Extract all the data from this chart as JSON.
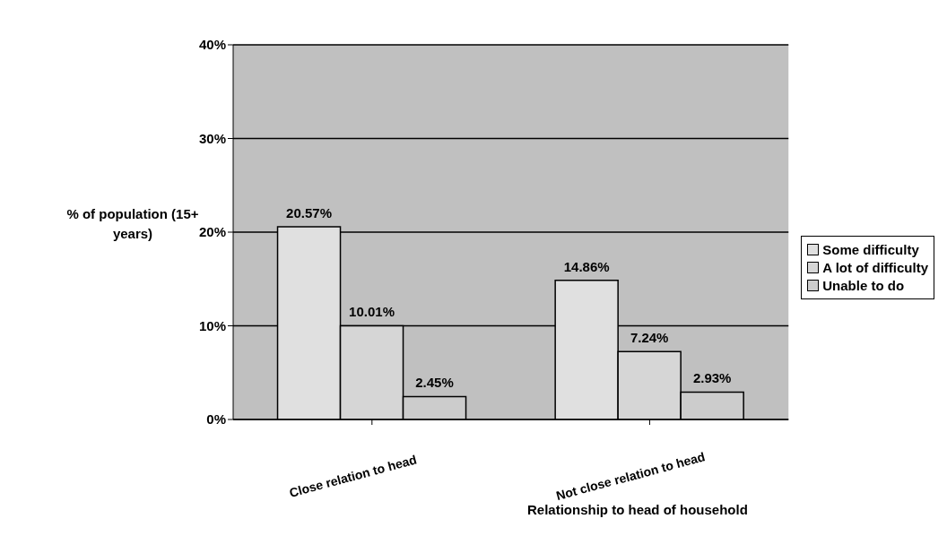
{
  "chart_data": {
    "type": "bar",
    "xlabel": "Relationship to head of household",
    "ylabel": "% of population (15+ years)",
    "categories": [
      "Close relation to head",
      "Not close relation to head"
    ],
    "series": [
      {
        "name": "Some difficulty",
        "color": "#e0e0e0",
        "values": [
          20.57,
          14.86
        ],
        "value_labels": [
          "20.57%",
          "14.86%"
        ]
      },
      {
        "name": "A lot of difficulty",
        "color": "#d6d6d6",
        "values": [
          10.01,
          7.24
        ],
        "value_labels": [
          "10.01%",
          "7.24%"
        ]
      },
      {
        "name": "Unable to do",
        "color": "#cccccc",
        "values": [
          2.45,
          2.93
        ],
        "value_labels": [
          "2.45%",
          "2.93%"
        ]
      }
    ],
    "ylim": [
      0,
      40
    ],
    "yticks": [
      {
        "value": 0,
        "label": "0%"
      },
      {
        "value": 10,
        "label": "10%"
      },
      {
        "value": 20,
        "label": "20%"
      },
      {
        "value": 30,
        "label": "30%"
      },
      {
        "value": 40,
        "label": "40%"
      }
    ],
    "grid": "y",
    "legend": "right"
  }
}
